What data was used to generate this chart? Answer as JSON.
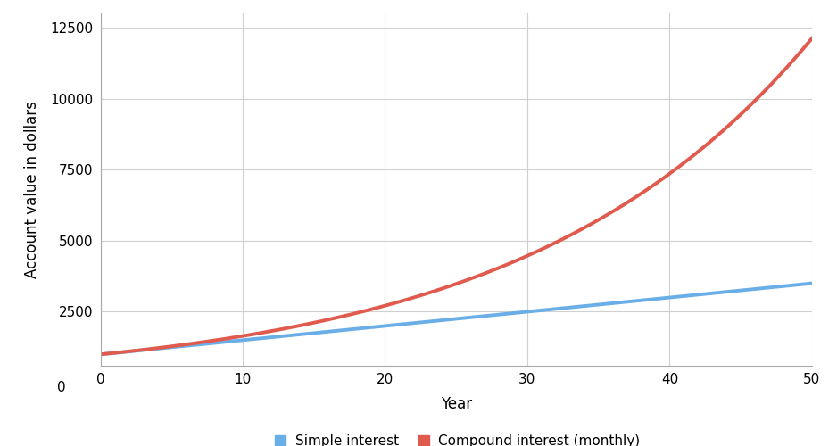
{
  "principal": 1000,
  "annual_rate": 0.05,
  "years": 50,
  "simple_color": "#6aaee8",
  "compound_color": "#e05a4e",
  "background_color": "#FFFFFF",
  "grid_color": "#d0d0d0",
  "ylabel": "Account value in dollars",
  "xlabel": "Year",
  "legend_labels": [
    "Simple interest",
    "Compound interest (monthly)"
  ],
  "xlim": [
    0,
    50
  ],
  "ylim": [
    600,
    13000
  ],
  "yticks": [
    2500,
    5000,
    7500,
    10000,
    12500
  ],
  "ytick_top": 12500,
  "xticks": [
    0,
    10,
    20,
    30,
    40,
    50
  ],
  "line_width": 2.8,
  "legend_fontsize": 11,
  "axis_label_fontsize": 12,
  "tick_fontsize": 11,
  "figsize": [
    9.38,
    5.0
  ],
  "dpi": 100
}
